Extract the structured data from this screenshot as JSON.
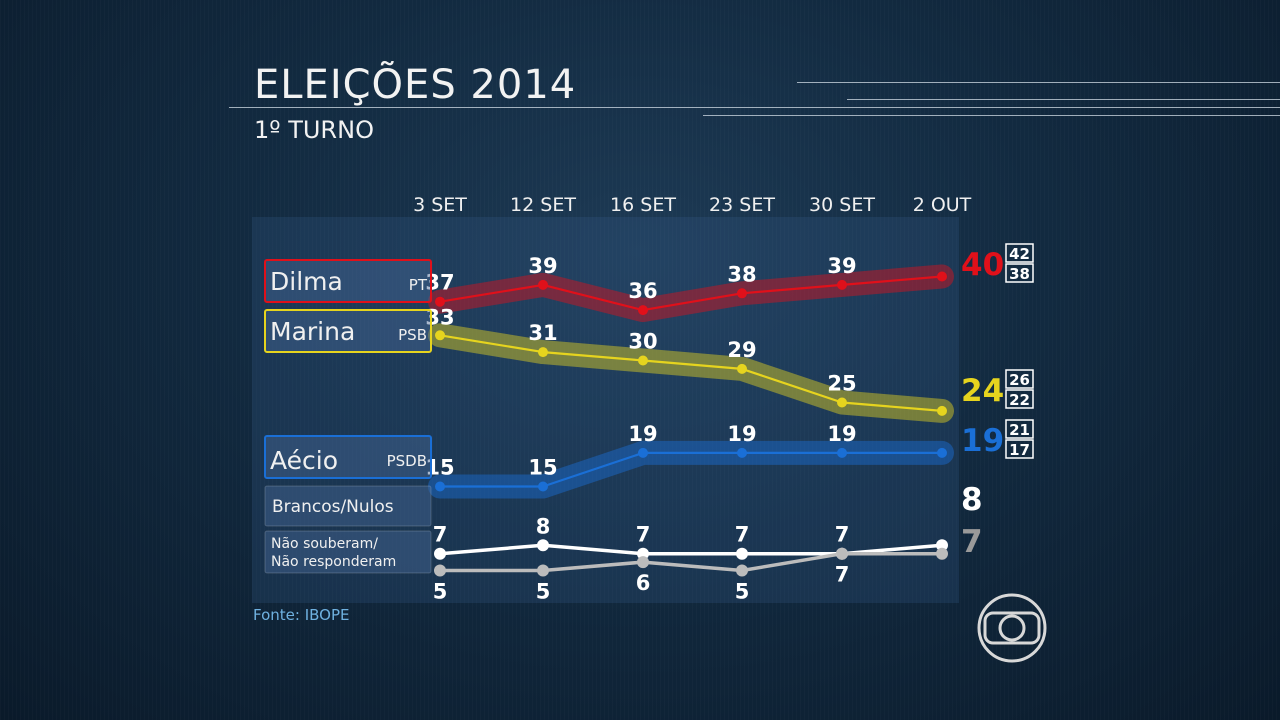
{
  "header": {
    "title": "ELEIÇÕES 2014",
    "subtitle": "1º TURNO"
  },
  "source": "Fonte: IBOPE",
  "colors": {
    "Dilma": "#e0101a",
    "Marina": "#e6d41e",
    "Aecio": "#1a6fd6",
    "Brancos": "#ffffff",
    "NaoSouberam": "#bcbcbc"
  },
  "icons": [
    "globo-logo-icon"
  ],
  "chart_data": {
    "type": "line",
    "categories": [
      "3 SET",
      "12 SET",
      "16 SET",
      "23 SET",
      "30 SET",
      "2 OUT"
    ],
    "ylim": [
      0,
      45
    ],
    "series": [
      {
        "name": "Dilma",
        "party": "PT",
        "values": [
          37,
          39,
          36,
          38,
          39,
          40
        ],
        "final": "40",
        "range": [
          "42",
          "38"
        ]
      },
      {
        "name": "Marina",
        "party": "PSB",
        "values": [
          33,
          31,
          30,
          29,
          25,
          24
        ],
        "final": "24",
        "range": [
          "26",
          "22"
        ]
      },
      {
        "name": "Aécio",
        "party": "PSDB",
        "values": [
          15,
          15,
          19,
          19,
          19,
          19
        ],
        "final": "19",
        "range": [
          "21",
          "17"
        ]
      },
      {
        "name": "Brancos/Nulos",
        "party": "",
        "values": [
          7,
          8,
          7,
          7,
          7,
          8
        ],
        "final": "8",
        "range": []
      },
      {
        "name": "Não souberam/ Não responderam",
        "party": "",
        "values": [
          5,
          5,
          6,
          5,
          7,
          7
        ],
        "final": "7",
        "range": []
      }
    ]
  }
}
